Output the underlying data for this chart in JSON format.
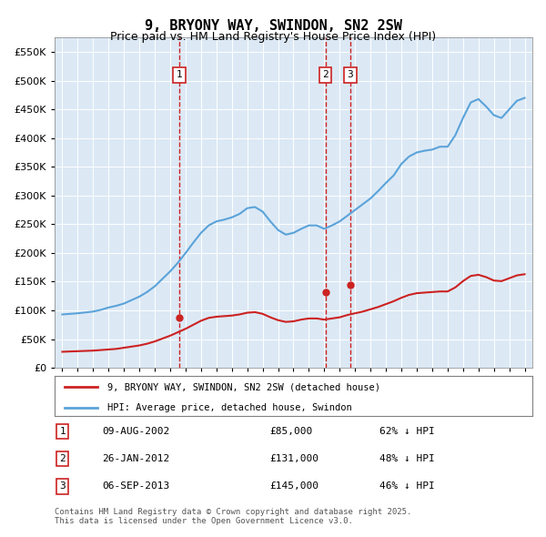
{
  "title": "9, BRYONY WAY, SWINDON, SN2 2SW",
  "subtitle": "Price paid vs. HM Land Registry's House Price Index (HPI)",
  "legend_line1": "9, BRYONY WAY, SWINDON, SN2 2SW (detached house)",
  "legend_line2": "HPI: Average price, detached house, Swindon",
  "footer": "Contains HM Land Registry data © Crown copyright and database right 2025.\nThis data is licensed under the Open Government Licence v3.0.",
  "transactions": [
    {
      "num": 1,
      "date": "09-AUG-2002",
      "price": 85000,
      "hpi_pct": "62%",
      "x_year": 2002.6
    },
    {
      "num": 2,
      "date": "26-JAN-2012",
      "price": 131000,
      "hpi_pct": "48%",
      "x_year": 2012.07
    },
    {
      "num": 3,
      "date": "06-SEP-2013",
      "price": 145000,
      "hpi_pct": "46%",
      "x_year": 2013.68
    }
  ],
  "hpi_color": "#5ba3d9",
  "price_color": "#cc2222",
  "vline_color": "#cc2222",
  "dot_color": "#cc2222",
  "background_color": "#dce9f5",
  "ylim": [
    0,
    575000
  ],
  "xlim_start": 1994.5,
  "xlim_end": 2025.5,
  "hpi_x": [
    1995,
    1995.5,
    1996,
    1996.5,
    1997,
    1997.5,
    1998,
    1998.5,
    1999,
    1999.5,
    2000,
    2000.5,
    2001,
    2001.5,
    2002,
    2002.5,
    2003,
    2003.5,
    2004,
    2004.5,
    2005,
    2005.5,
    2006,
    2006.5,
    2007,
    2007.5,
    2008,
    2008.5,
    2009,
    2009.5,
    2010,
    2010.5,
    2011,
    2011.5,
    2012,
    2012.5,
    2013,
    2013.5,
    2014,
    2014.5,
    2015,
    2015.5,
    2016,
    2016.5,
    2017,
    2017.5,
    2018,
    2018.5,
    2019,
    2019.5,
    2020,
    2020.5,
    2021,
    2021.5,
    2022,
    2022.5,
    2023,
    2023.5,
    2024,
    2024.5,
    2025
  ],
  "hpi_y": [
    93000,
    94000,
    95000,
    96500,
    98000,
    101000,
    105000,
    108000,
    112000,
    118000,
    124000,
    132000,
    142000,
    155000,
    168000,
    183000,
    200000,
    218000,
    235000,
    248000,
    255000,
    258000,
    262000,
    268000,
    278000,
    280000,
    272000,
    255000,
    240000,
    232000,
    235000,
    242000,
    248000,
    248000,
    242000,
    248000,
    255000,
    265000,
    275000,
    285000,
    295000,
    308000,
    322000,
    335000,
    355000,
    368000,
    375000,
    378000,
    380000,
    385000,
    385000,
    405000,
    435000,
    462000,
    468000,
    455000,
    440000,
    435000,
    450000,
    465000,
    470000
  ],
  "price_x": [
    1995,
    1995.5,
    1996,
    1996.5,
    1997,
    1997.5,
    1998,
    1998.5,
    1999,
    1999.5,
    2000,
    2000.5,
    2001,
    2001.5,
    2002,
    2002.5,
    2003,
    2003.5,
    2004,
    2004.5,
    2005,
    2005.5,
    2006,
    2006.5,
    2007,
    2007.5,
    2008,
    2008.5,
    2009,
    2009.5,
    2010,
    2010.5,
    2011,
    2011.5,
    2012,
    2012.5,
    2013,
    2013.5,
    2014,
    2014.5,
    2015,
    2015.5,
    2016,
    2016.5,
    2017,
    2017.5,
    2018,
    2018.5,
    2019,
    2019.5,
    2020,
    2020.5,
    2021,
    2021.5,
    2022,
    2022.5,
    2023,
    2023.5,
    2024,
    2024.5,
    2025
  ],
  "price_y": [
    28000,
    28500,
    29000,
    29500,
    30000,
    31000,
    32000,
    33000,
    35000,
    37000,
    39000,
    42000,
    46000,
    51000,
    56000,
    62000,
    68000,
    75000,
    82000,
    87000,
    89000,
    90000,
    91000,
    93000,
    96000,
    97000,
    94000,
    88000,
    83000,
    80000,
    81000,
    84000,
    86000,
    86000,
    84000,
    86000,
    88000,
    92000,
    95000,
    98000,
    102000,
    106000,
    111000,
    116000,
    122000,
    127000,
    130000,
    131000,
    132000,
    133000,
    133000,
    140000,
    151000,
    160000,
    162000,
    158000,
    152000,
    151000,
    156000,
    161000,
    163000
  ],
  "yticks": [
    0,
    50000,
    100000,
    150000,
    200000,
    250000,
    300000,
    350000,
    400000,
    450000,
    500000,
    550000
  ]
}
